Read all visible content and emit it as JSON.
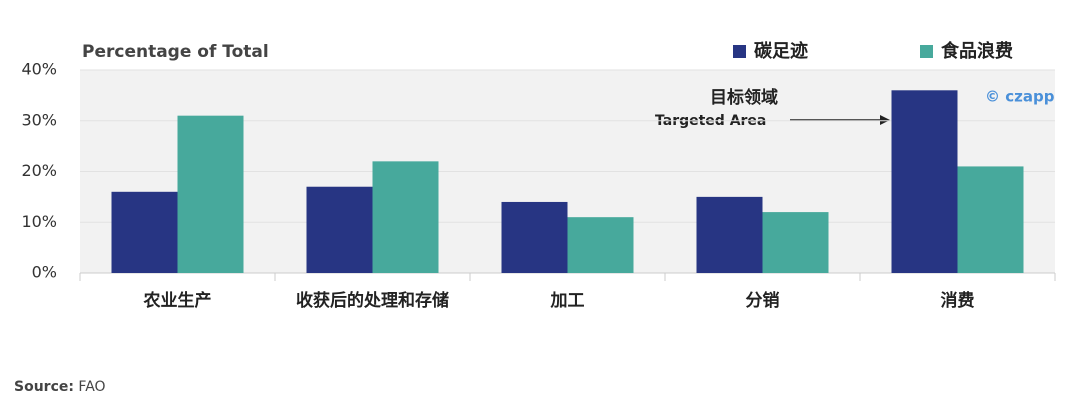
{
  "chart_data": {
    "type": "bar",
    "title": "Percentage of Total",
    "categories": [
      "农业生产",
      "收获后的处理和存储",
      "加工",
      "分销",
      "消费"
    ],
    "series": [
      {
        "name": "碳足迹",
        "color": "#273583",
        "values": [
          16,
          17,
          14,
          15,
          36
        ]
      },
      {
        "name": "食品浪费",
        "color": "#47a99c",
        "values": [
          31,
          22,
          11,
          12,
          21
        ]
      }
    ],
    "ylim": [
      0,
      40
    ],
    "yticks": [
      {
        "value": 0,
        "label": "0%"
      },
      {
        "value": 10,
        "label": "10%"
      },
      {
        "value": 20,
        "label": "20%"
      },
      {
        "value": 30,
        "label": "30%"
      },
      {
        "value": 40,
        "label": "40%"
      }
    ],
    "grid": true,
    "legend": "top-right",
    "annotation": {
      "title": "目标领域",
      "subtitle": "Targeted Area"
    },
    "watermark": "© czapp",
    "source": {
      "label": "Source:",
      "text": "FAO"
    }
  }
}
